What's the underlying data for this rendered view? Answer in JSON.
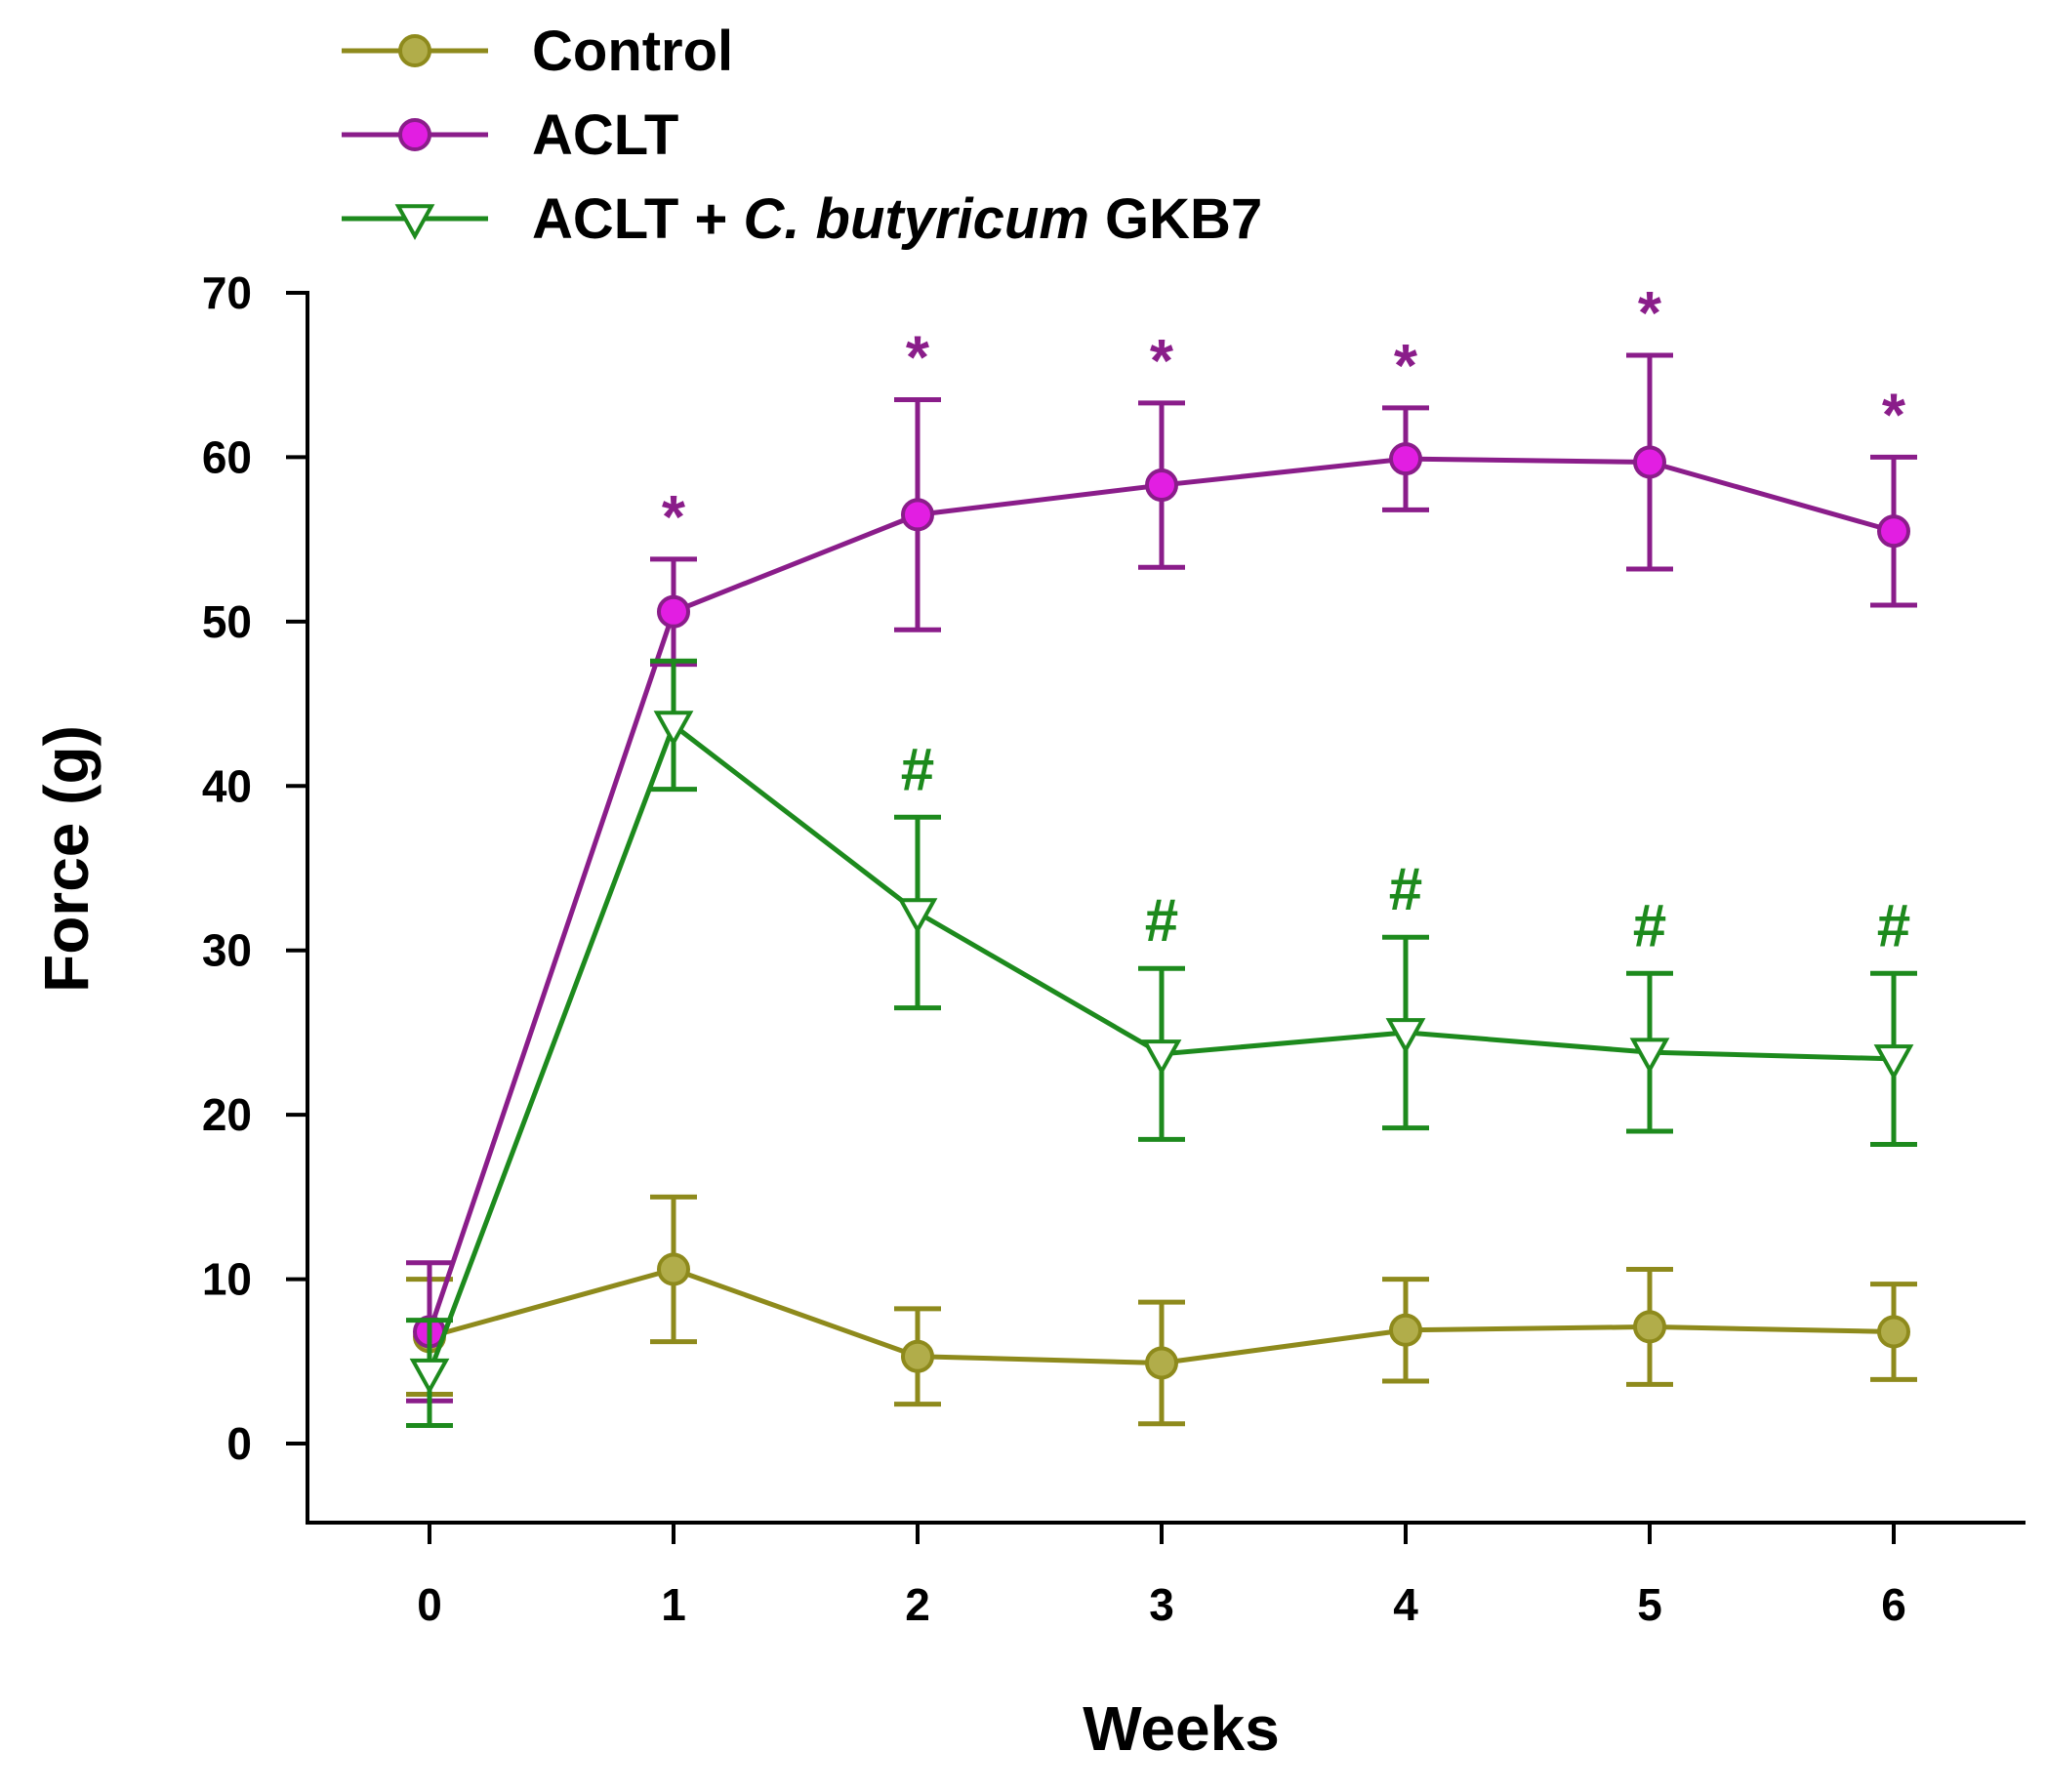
{
  "colors": {
    "control": "#8e8a1c",
    "control_fill": "#b1ad4a",
    "aclt": "#8a1d8a",
    "aclt_fill": "#e21ee2",
    "gkb7": "#1d8a1d",
    "gkb7_fill": "#ffffff",
    "axis": "#000000"
  },
  "legend": {
    "items": [
      {
        "label": "Control",
        "marker": "circle",
        "color_key": "control"
      },
      {
        "label": "ACLT",
        "marker": "circle",
        "color_key": "aclt"
      },
      {
        "label_prefix": "ACLT + ",
        "label_italic": "C. butyricum",
        "label_suffix": " GKB7",
        "marker": "triangle-down",
        "color_key": "gkb7"
      }
    ]
  },
  "chart_data": {
    "type": "line",
    "xlabel": "Weeks",
    "ylabel": "Force (g)",
    "x": [
      0,
      1,
      2,
      3,
      4,
      5,
      6
    ],
    "xticks": [
      "0",
      "1",
      "2",
      "3",
      "4",
      "5",
      "6"
    ],
    "ylim": [
      -5,
      70
    ],
    "yticks": [
      0,
      10,
      20,
      30,
      40,
      50,
      60,
      70
    ],
    "grid": false,
    "legend_position": "top-left",
    "series": [
      {
        "name": "Control",
        "marker": "circle",
        "values": [
          6.5,
          10.6,
          5.3,
          4.9,
          6.9,
          7.1,
          6.8
        ],
        "error": [
          3.5,
          4.4,
          2.9,
          3.7,
          3.1,
          3.5,
          2.9
        ],
        "annotations": []
      },
      {
        "name": "ACLT",
        "marker": "circle",
        "values": [
          6.8,
          50.6,
          56.5,
          58.3,
          59.9,
          59.7,
          55.5
        ],
        "error": [
          4.2,
          3.2,
          7.0,
          5.0,
          3.1,
          6.5,
          4.5
        ],
        "annotations": [
          "",
          "*",
          "*",
          "*",
          "*",
          "*",
          "*"
        ]
      },
      {
        "name": "ACLT + C. butyricum GKB7",
        "marker": "triangle-down",
        "values": [
          4.3,
          43.7,
          32.3,
          23.7,
          25.0,
          23.8,
          23.4
        ],
        "error": [
          3.2,
          3.9,
          5.8,
          5.2,
          5.8,
          4.8,
          5.2
        ],
        "annotations": [
          "",
          "",
          "#",
          "#",
          "#",
          "#",
          "#"
        ]
      }
    ]
  }
}
